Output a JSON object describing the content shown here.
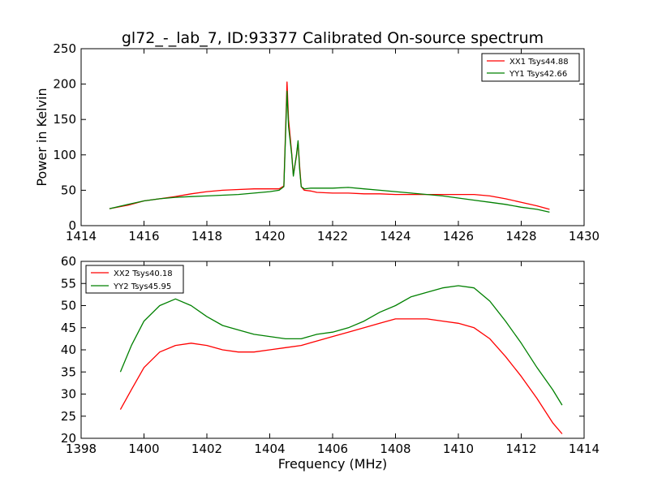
{
  "title": "gl72_-_lab_7, ID:93377 Calibrated On-source spectrum",
  "colors": {
    "xx": "#ff0000",
    "yy": "#008000"
  },
  "chart_data": [
    {
      "type": "line",
      "title": "gl72_-_lab_7, ID:93377 Calibrated On-source spectrum",
      "xlabel": "",
      "ylabel": "Power in Kelvin",
      "xlim": [
        1414,
        1430
      ],
      "ylim": [
        0,
        250
      ],
      "xticks": [
        1414,
        1416,
        1418,
        1420,
        1422,
        1424,
        1426,
        1428,
        1430
      ],
      "yticks": [
        0,
        50,
        100,
        150,
        200,
        250
      ],
      "legend_position": "top-right",
      "grid": false,
      "series": [
        {
          "name": "XX1 Tsys44.88",
          "color": "#ff0000",
          "x": [
            1414.9,
            1415.5,
            1416,
            1416.5,
            1417,
            1417.5,
            1418,
            1418.5,
            1419,
            1419.5,
            1420,
            1420.3,
            1420.45,
            1420.55,
            1420.6,
            1420.7,
            1420.75,
            1420.85,
            1420.9,
            1420.95,
            1421.0,
            1421.1,
            1421.3,
            1421.5,
            1422,
            1422.5,
            1423,
            1423.5,
            1424,
            1424.5,
            1425,
            1425.5,
            1426,
            1426.5,
            1427,
            1427.5,
            1428,
            1428.5,
            1428.9
          ],
          "y": [
            24,
            29,
            35,
            38,
            41,
            45,
            48,
            50,
            51,
            52,
            52,
            52,
            56,
            203,
            150,
            102,
            72,
            98,
            118,
            85,
            55,
            50,
            49,
            47,
            46,
            46,
            45,
            45,
            44,
            44,
            44,
            44,
            44,
            44,
            42,
            38,
            33,
            28,
            23
          ]
        },
        {
          "name": "YY1 Tsys42.66",
          "color": "#008000",
          "x": [
            1414.9,
            1415.5,
            1416,
            1416.5,
            1417,
            1417.5,
            1418,
            1418.5,
            1419,
            1419.5,
            1420,
            1420.3,
            1420.45,
            1420.55,
            1420.6,
            1420.7,
            1420.75,
            1420.85,
            1420.9,
            1420.95,
            1421.0,
            1421.1,
            1421.3,
            1421.5,
            1422,
            1422.5,
            1423,
            1423.5,
            1424,
            1424.5,
            1425,
            1425.5,
            1426,
            1426.5,
            1427,
            1427.5,
            1428,
            1428.5,
            1428.9
          ],
          "y": [
            24,
            30,
            35,
            38,
            40,
            41,
            42,
            43,
            44,
            46,
            48,
            50,
            55,
            190,
            140,
            100,
            70,
            100,
            120,
            80,
            55,
            52,
            53,
            53,
            53,
            54,
            52,
            50,
            48,
            46,
            44,
            42,
            39,
            36,
            33,
            30,
            26,
            23,
            19
          ]
        }
      ]
    },
    {
      "type": "line",
      "title": "",
      "xlabel": "Frequency (MHz)",
      "ylabel": "",
      "xlim": [
        1398,
        1414
      ],
      "ylim": [
        20,
        60
      ],
      "xticks": [
        1398,
        1400,
        1402,
        1404,
        1406,
        1408,
        1410,
        1412,
        1414
      ],
      "yticks": [
        20,
        25,
        30,
        35,
        40,
        45,
        50,
        55,
        60
      ],
      "legend_position": "top-left",
      "grid": false,
      "series": [
        {
          "name": "XX2 Tsys40.18",
          "color": "#ff0000",
          "x": [
            1399.25,
            1399.6,
            1400,
            1400.5,
            1401,
            1401.5,
            1402,
            1402.5,
            1403,
            1403.5,
            1404,
            1404.5,
            1405,
            1405.5,
            1406,
            1406.5,
            1407,
            1407.5,
            1408,
            1408.5,
            1409,
            1409.5,
            1410,
            1410.5,
            1411,
            1411.5,
            1412,
            1412.5,
            1413,
            1413.3
          ],
          "y": [
            26.5,
            31,
            36,
            39.5,
            41,
            41.5,
            41,
            40,
            39.5,
            39.5,
            40,
            40.5,
            41,
            42,
            43,
            44,
            45,
            46,
            47,
            47,
            47,
            46.5,
            46,
            45,
            42.5,
            38.5,
            34,
            29,
            23.5,
            21
          ]
        },
        {
          "name": "YY2 Tsys45.95",
          "color": "#008000",
          "x": [
            1399.25,
            1399.6,
            1400,
            1400.5,
            1401,
            1401.5,
            1402,
            1402.5,
            1403,
            1403.5,
            1404,
            1404.5,
            1405,
            1405.5,
            1406,
            1406.5,
            1407,
            1407.5,
            1408,
            1408.5,
            1409,
            1409.5,
            1410,
            1410.5,
            1411,
            1411.5,
            1412,
            1412.5,
            1413,
            1413.3
          ],
          "y": [
            35,
            41,
            46.5,
            50,
            51.5,
            50,
            47.5,
            45.5,
            44.5,
            43.5,
            43,
            42.5,
            42.5,
            43.5,
            44,
            45,
            46.5,
            48.5,
            50,
            52,
            53,
            54,
            54.5,
            54,
            51,
            46.5,
            41.5,
            36,
            31,
            27.5
          ]
        }
      ]
    }
  ]
}
